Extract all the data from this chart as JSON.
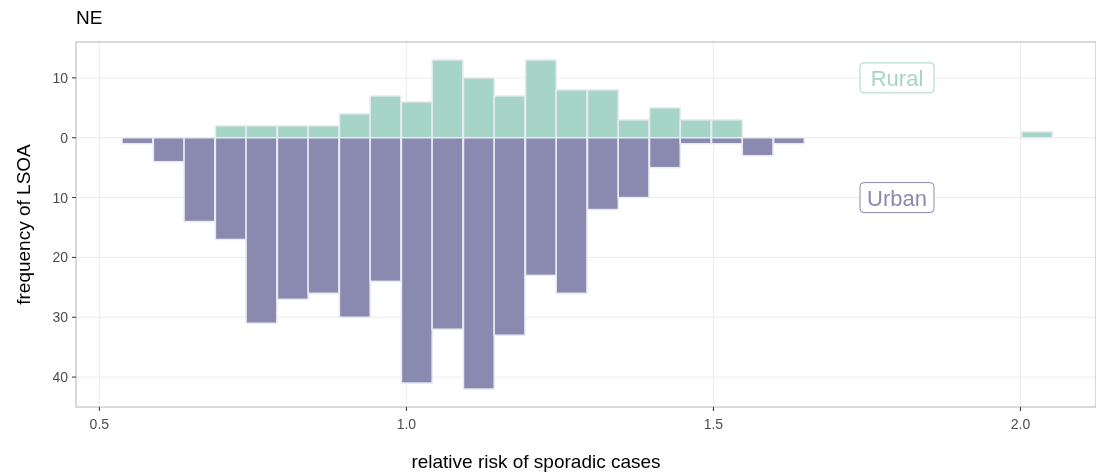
{
  "chart_data": {
    "type": "bar",
    "title": "NE",
    "xlabel": "relative risk of sporadic cases",
    "ylabel": "frequency of LSOA",
    "stacked": true,
    "x": [
      0.562,
      0.613,
      0.663,
      0.714,
      0.764,
      0.815,
      0.865,
      0.916,
      0.966,
      1.017,
      1.067,
      1.118,
      1.168,
      1.219,
      1.269,
      1.32,
      1.37,
      1.421,
      1.471,
      1.522,
      1.572,
      1.623,
      2.027
    ],
    "series": [
      {
        "name": "Rural",
        "color": "#a6d5c8",
        "values": [
          0,
          0,
          0,
          2,
          2,
          2,
          2,
          4,
          7,
          6,
          13,
          10,
          7,
          13,
          8,
          8,
          3,
          5,
          3,
          3,
          0,
          0,
          1
        ]
      },
      {
        "name": "Urban",
        "color": "#8a89b0",
        "values": [
          -1,
          -4,
          -14,
          -17,
          -31,
          -27,
          -26,
          -30,
          -24,
          -41,
          -32,
          -42,
          -33,
          -23,
          -26,
          -12,
          -10,
          -5,
          -1,
          -1,
          -3,
          -1,
          0
        ]
      }
    ],
    "xlim": [
      0.462,
      2.123
    ],
    "ylim": [
      -45,
      16
    ],
    "xticks": [
      {
        "value": 0.5,
        "label": "0.5"
      },
      {
        "value": 1,
        "label": "1.0"
      },
      {
        "value": 1.5,
        "label": "1.5"
      },
      {
        "value": 2,
        "label": "2.0"
      }
    ],
    "yticks": [
      {
        "value": 10,
        "label": "10"
      },
      0,
      {
        "value": -10,
        "label": "10"
      },
      {
        "value": -20,
        "label": "20"
      },
      {
        "value": -30,
        "label": "30"
      },
      {
        "value": -40,
        "label": "40"
      }
    ],
    "grid": true,
    "legend": false
  }
}
